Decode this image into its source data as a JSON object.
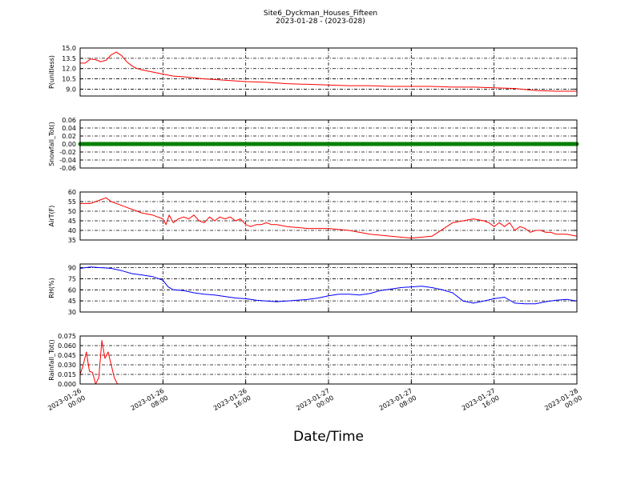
{
  "chart_data": {
    "type": "line",
    "title": "Site6_Dyckman_Houses_Fifteen",
    "subtitle": "2023-01-28 - (2023-028)",
    "xlabel": "Date/Time",
    "x_range": [
      "2023-01-26 00:00",
      "2023-01-28 00:00"
    ],
    "x_ticks": [
      {
        "l1": "2023-01-26",
        "l2": "00:00"
      },
      {
        "l1": "2023-01-26",
        "l2": "08:00"
      },
      {
        "l1": "2023-01-26",
        "l2": "16:00"
      },
      {
        "l1": "2023-01-27",
        "l2": "00:00"
      },
      {
        "l1": "2023-01-27",
        "l2": "08:00"
      },
      {
        "l1": "2023-01-27",
        "l2": "16:00"
      },
      {
        "l1": "2023-01-28",
        "l2": "00:00"
      }
    ],
    "grid": true,
    "panels": [
      {
        "ylabel": "P(unitless)",
        "ylim": [
          8,
          15
        ],
        "yticks": [
          "9.0",
          "10.5",
          "12.0",
          "13.5",
          "15.0"
        ],
        "color": "#ff0000",
        "marker": false,
        "hours": [
          0,
          0.5,
          1,
          1.5,
          2,
          2.5,
          3,
          3.5,
          4,
          4.5,
          5,
          5.5,
          6,
          7,
          8,
          9,
          10,
          12,
          14,
          16,
          18,
          20,
          22,
          24,
          26,
          28,
          30,
          32,
          34,
          36,
          38,
          40,
          42,
          44,
          46,
          48
        ],
        "values": [
          12.8,
          12.8,
          13.4,
          13.3,
          13.0,
          13.2,
          14.0,
          14.4,
          13.9,
          13.0,
          12.4,
          12.0,
          11.8,
          11.5,
          11.2,
          10.9,
          10.8,
          10.5,
          10.3,
          10.1,
          10.0,
          9.8,
          9.7,
          9.6,
          9.5,
          9.5,
          9.4,
          9.4,
          9.4,
          9.3,
          9.3,
          9.2,
          9.1,
          8.8,
          8.7,
          8.7
        ]
      },
      {
        "ylabel": "Snowfall_Tot()",
        "ylim": [
          -0.06,
          0.06
        ],
        "yticks": [
          "-0.06",
          "-0.04",
          "-0.02",
          "0.00",
          "0.02",
          "0.04",
          "0.06"
        ],
        "color": "#008000",
        "marker": true,
        "hours": [
          0,
          48
        ],
        "values": [
          0.0,
          0.0
        ]
      },
      {
        "ylabel": "AirT(F)",
        "ylim": [
          35,
          60
        ],
        "yticks": [
          "35",
          "40",
          "45",
          "50",
          "55",
          "60"
        ],
        "color": "#ff0000",
        "marker": false,
        "hours": [
          0,
          1,
          1.5,
          2,
          2.5,
          3,
          4,
          5,
          6,
          7,
          8,
          8.3,
          8.6,
          9,
          9.5,
          10,
          10.5,
          11,
          11.5,
          12,
          12.5,
          13,
          13.5,
          14,
          14.5,
          15,
          15.5,
          16,
          16.5,
          17,
          17.5,
          18,
          18.5,
          19,
          20,
          22,
          24,
          26,
          28,
          30,
          32,
          34,
          36,
          38,
          39,
          39.5,
          40,
          40.5,
          41,
          41.5,
          42,
          42.5,
          43,
          43.5,
          44,
          44.5,
          45,
          45.5,
          46,
          47,
          48
        ],
        "values": [
          54,
          54,
          55,
          56,
          57,
          55,
          53,
          51,
          49,
          48,
          46,
          43,
          48,
          44,
          46,
          47,
          46,
          48,
          45,
          44,
          47,
          45,
          47,
          46,
          47,
          45,
          46,
          43,
          42,
          43,
          43,
          44,
          43,
          43,
          42,
          41,
          41,
          40,
          38,
          37,
          36,
          37,
          44,
          46,
          45,
          44,
          42,
          44,
          42,
          44,
          40,
          42,
          41,
          39,
          40,
          40,
          39,
          39,
          38,
          38,
          37
        ]
      },
      {
        "ylabel": "RH(%)",
        "ylim": [
          30,
          95
        ],
        "yticks": [
          "30",
          "45",
          "60",
          "75",
          "90"
        ],
        "color": "#0000ff",
        "marker": false,
        "hours": [
          0,
          1,
          2,
          3,
          4,
          5,
          6,
          7,
          8,
          8.5,
          9,
          10,
          11,
          12,
          13,
          14,
          15,
          16,
          17,
          18,
          19,
          20,
          21,
          22,
          23,
          24,
          25,
          26,
          27,
          28,
          29,
          30,
          31,
          32,
          33,
          34,
          35,
          36,
          37,
          38,
          39,
          40,
          41,
          42,
          43,
          44,
          45,
          46,
          47,
          48
        ],
        "values": [
          89,
          91,
          90,
          89,
          86,
          82,
          80,
          78,
          73,
          64,
          60,
          59,
          56,
          54,
          53,
          51,
          49,
          48,
          46,
          45,
          44,
          45,
          46,
          47,
          49,
          52,
          54,
          54,
          53,
          55,
          59,
          61,
          63,
          64,
          65,
          63,
          60,
          56,
          45,
          42,
          45,
          48,
          50,
          42,
          41,
          41,
          44,
          46,
          47,
          45
        ]
      },
      {
        "ylabel": "Rainfall_Tot()",
        "ylim": [
          0,
          0.075
        ],
        "yticks": [
          "0.000",
          "0.015",
          "0.030",
          "0.045",
          "0.060",
          "0.075"
        ],
        "color": "#ff0000",
        "marker": false,
        "hours": [
          0,
          0.3,
          0.6,
          0.9,
          1.2,
          1.5,
          1.8,
          2.1,
          2.4,
          2.7,
          3.0,
          3.3,
          3.6,
          3.9,
          4.2,
          4.5,
          48
        ],
        "values": [
          0.015,
          0.03,
          0.05,
          0.02,
          0.018,
          0.0,
          0.01,
          0.068,
          0.04,
          0.05,
          0.03,
          0.01,
          0.0,
          0.0,
          0.0,
          0.0,
          0.0
        ]
      }
    ]
  }
}
